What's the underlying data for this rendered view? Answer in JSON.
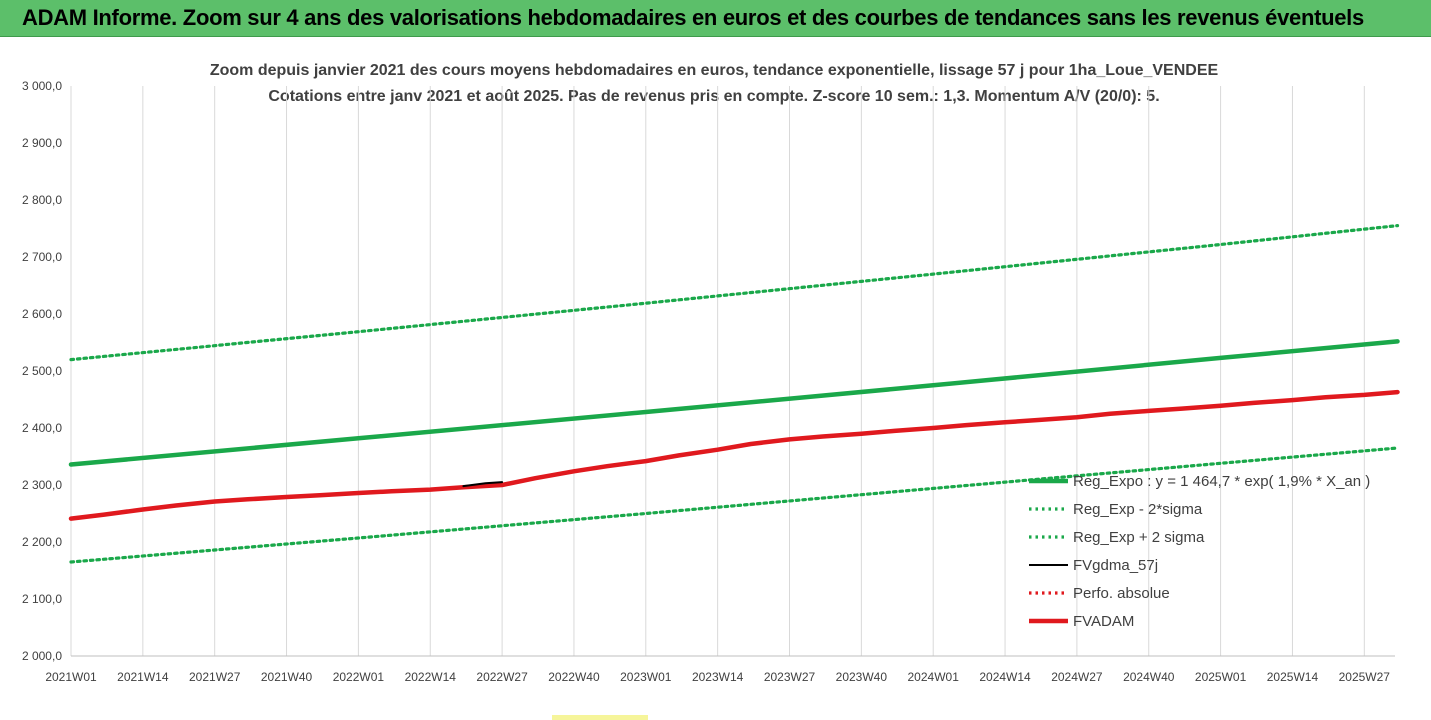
{
  "banner": {
    "title": "ADAM Informe. Zoom sur 4 ans des valorisations hebdomadaires en euros et des courbes de tendances sans les revenus éventuels"
  },
  "chart_data": {
    "type": "line",
    "title_lines": [
      "Zoom depuis janvier 2021 des cours moyens hebdomadaires en euros, tendance exponentielle, lissage 57 j pour 1ha_Loue_VENDEE",
      "Cotations entre janv 2021 et août 2025.  Pas de revenus pris en compte. Z-score 10 sem.: 1,3. Momentum A/V (20/0): 5."
    ],
    "xlabel": "",
    "ylabel": "",
    "ylim": [
      2000,
      3000
    ],
    "yticks": [
      "3 000,0",
      "2 900,0",
      "2 800,0",
      "2 700,0",
      "2 600,0",
      "2 500,0",
      "2 400,0",
      "2 300,0",
      "2 200,0",
      "2 100,0",
      "2 000,0"
    ],
    "categories": [
      "2021W01",
      "2021W14",
      "2021W27",
      "2021W40",
      "2022W01",
      "2022W14",
      "2022W27",
      "2022W40",
      "2023W01",
      "2023W14",
      "2023W27",
      "2023W40",
      "2024W01",
      "2024W14",
      "2024W27",
      "2024W40",
      "2025W01",
      "2025W14",
      "2025W27"
    ],
    "grid": "vertical",
    "legend_position": "bottom-right",
    "series": [
      {
        "name": "Reg_Expo : y = 1 464,7 * exp( 1,9% *  X_an )",
        "color": "#1aa84a",
        "style": "solid-thick",
        "x": [
          "2021W01",
          "2022W01",
          "2023W01",
          "2024W01",
          "2025W01",
          "2025W33"
        ],
        "values": [
          2336,
          2382,
          2428,
          2475,
          2523,
          2552
        ]
      },
      {
        "name": "Reg_Exp - 2*sigma",
        "color": "#1aa84a",
        "style": "dotted",
        "x": [
          "2021W01",
          "2022W01",
          "2023W01",
          "2024W01",
          "2025W01",
          "2025W33"
        ],
        "values": [
          2165,
          2207,
          2250,
          2294,
          2338,
          2365
        ]
      },
      {
        "name": "Reg_Exp + 2 sigma",
        "color": "#1aa84a",
        "style": "dotted",
        "x": [
          "2021W01",
          "2022W01",
          "2023W01",
          "2024W01",
          "2025W01",
          "2025W33"
        ],
        "values": [
          2520,
          2569,
          2619,
          2670,
          2722,
          2755
        ]
      },
      {
        "name": "FVgdma_57j",
        "color": "#000000",
        "style": "solid",
        "x": [
          "2022W20",
          "2022W24",
          "2022W27"
        ],
        "values": [
          2298,
          2303,
          2305
        ]
      },
      {
        "name": "Perfo. absolue",
        "color": "#e0191e",
        "style": "dotted",
        "x": [],
        "values": []
      },
      {
        "name": "FVADAM",
        "color": "#e0191e",
        "style": "solid-thick",
        "x": [
          "2021W01",
          "2021W07",
          "2021W14",
          "2021W20",
          "2021W27",
          "2021W33",
          "2021W40",
          "2021W46",
          "2022W01",
          "2022W07",
          "2022W14",
          "2022W20",
          "2022W27",
          "2022W33",
          "2022W40",
          "2022W46",
          "2023W01",
          "2023W07",
          "2023W14",
          "2023W20",
          "2023W27",
          "2023W33",
          "2023W40",
          "2023W46",
          "2024W01",
          "2024W07",
          "2024W14",
          "2024W20",
          "2024W27",
          "2024W33",
          "2024W40",
          "2024W46",
          "2025W01",
          "2025W07",
          "2025W14",
          "2025W20",
          "2025W27",
          "2025W33"
        ],
        "values": [
          2241,
          2248,
          2257,
          2264,
          2271,
          2275,
          2279,
          2282,
          2286,
          2289,
          2292,
          2296,
          2300,
          2312,
          2324,
          2333,
          2342,
          2352,
          2362,
          2372,
          2380,
          2385,
          2390,
          2395,
          2400,
          2405,
          2410,
          2414,
          2419,
          2425,
          2430,
          2434,
          2439,
          2444,
          2449,
          2454,
          2458,
          2463
        ]
      }
    ]
  }
}
